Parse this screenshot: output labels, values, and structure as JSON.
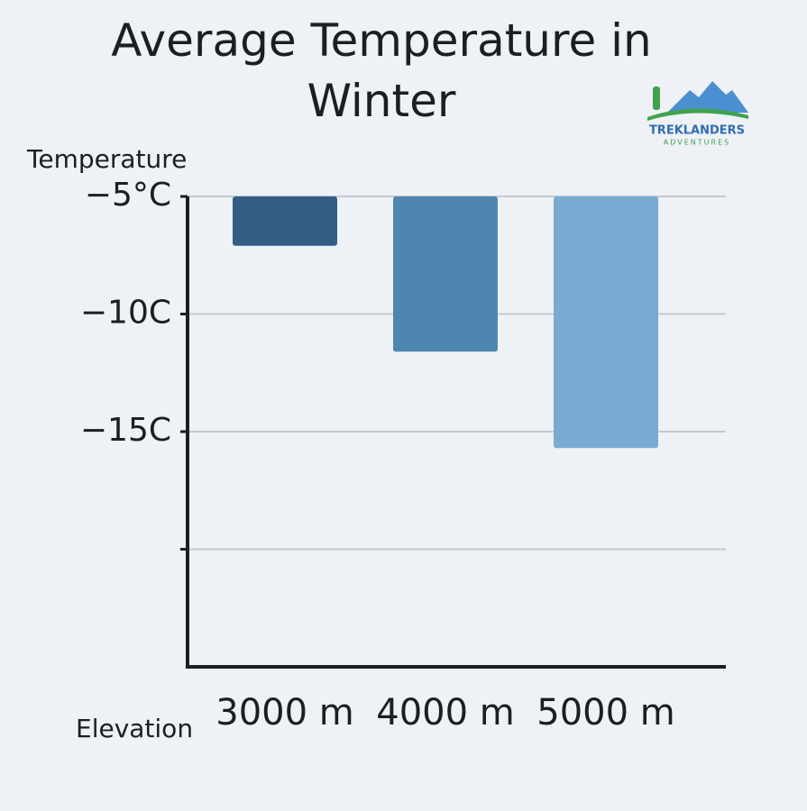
{
  "chart_data": {
    "type": "bar",
    "title": "Average Temperature in Winter",
    "y_label": "Temperature",
    "x_label": "Elevation",
    "categories": [
      "3000 m",
      "4000 m",
      "5000 m"
    ],
    "values": [
      -7.1,
      -11.6,
      -15.7
    ],
    "colors": [
      "#335d84",
      "#4f86b0",
      "#79aad2"
    ],
    "ylim": [
      -25,
      -5
    ],
    "yticks": [
      {
        "value": -5,
        "label": "−5°C"
      },
      {
        "value": -10,
        "label": "−10C"
      },
      {
        "value": -15,
        "label": "−15C"
      },
      {
        "value": -20,
        "label": null
      }
    ],
    "grid": true
  },
  "logo": {
    "name": "TREKLANDERS",
    "tagline": "ADVENTURES"
  }
}
